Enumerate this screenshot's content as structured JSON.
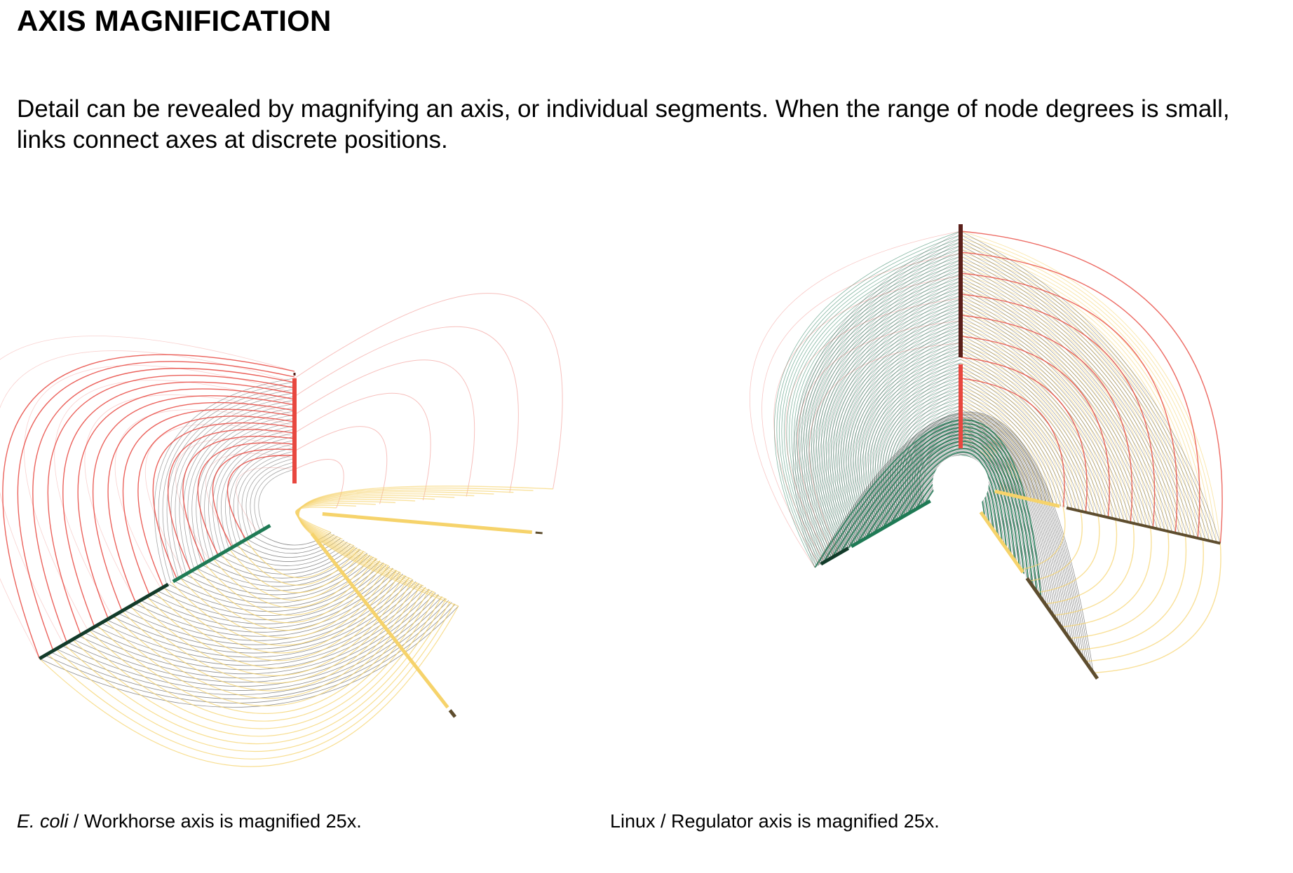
{
  "page": {
    "title": "AXIS MAGNIFICATION",
    "description": "Detail can be revealed by magnifying an axis, or individual segments. When the range of node degrees is small, links connect axes at discrete positions."
  },
  "figures": [
    {
      "id": "ecoli",
      "caption_italic": "E. coli",
      "caption_rest": " / Workhorse axis is magnified 25x."
    },
    {
      "id": "linux",
      "caption_italic": "",
      "caption_rest": "Linux / Regulator axis is magnified 25x."
    }
  ],
  "colors": {
    "red": "#e8473f",
    "red_dark": "#5a1f1a",
    "green": "#1f7a55",
    "green_dark": "#123b2a",
    "yellow": "#f6d36b",
    "brown": "#5e4d2e",
    "black": "#000000"
  }
}
